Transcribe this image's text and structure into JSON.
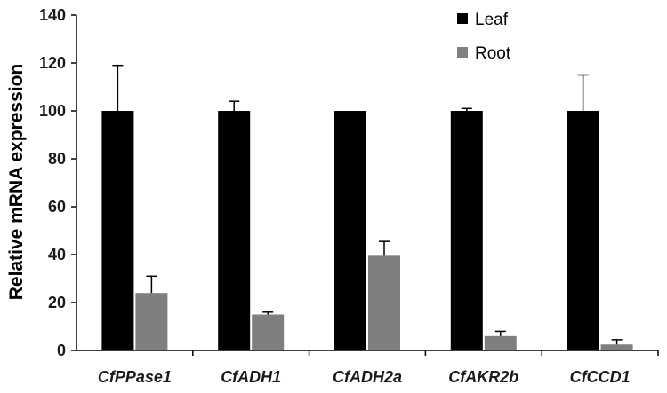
{
  "chart_data": {
    "type": "bar",
    "categories": [
      "CfPPase1",
      "CfADH1",
      "CfADH2a",
      "CfAKR2b",
      "CfCCD1"
    ],
    "series": [
      {
        "name": "Leaf",
        "values": [
          100,
          100,
          100,
          100,
          100
        ],
        "errors": [
          19,
          4,
          0,
          1,
          15
        ],
        "color": "#000000"
      },
      {
        "name": "Root",
        "values": [
          24,
          15,
          39.5,
          6,
          2.5
        ],
        "errors": [
          7,
          1,
          6,
          2,
          2
        ],
        "color": "#7f7f7f"
      }
    ],
    "title": "",
    "xlabel": "",
    "ylabel": "Relative mRNA expression",
    "ylim": [
      0,
      140
    ],
    "yticks": [
      0,
      20,
      40,
      60,
      80,
      100,
      120,
      140
    ],
    "grid": false,
    "legend_position": "top-right"
  }
}
